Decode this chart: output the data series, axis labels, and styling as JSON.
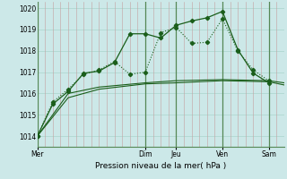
{
  "xlabel": "Pression niveau de la mer( hPa )",
  "ylim": [
    1013.5,
    1020.3
  ],
  "yticks": [
    1014,
    1015,
    1016,
    1017,
    1018,
    1019,
    1020
  ],
  "background_color": "#cce8e8",
  "grid_color_h": "#aad4cc",
  "grid_color_v": "#c4a0a0",
  "line_color": "#1a5e1a",
  "x_day_labels": [
    "Mer",
    "Dim",
    "Jeu",
    "Ven",
    "Sam"
  ],
  "x_day_positions": [
    0,
    14,
    18,
    24,
    30
  ],
  "xlim": [
    0,
    32
  ],
  "series1_x": [
    0,
    2,
    4,
    6,
    8,
    10,
    12,
    14,
    16,
    18,
    20,
    22,
    24,
    26,
    28,
    30
  ],
  "series1_y": [
    1014.0,
    1015.6,
    1016.2,
    1016.9,
    1017.1,
    1017.5,
    1016.9,
    1017.0,
    1018.85,
    1019.1,
    1018.35,
    1018.4,
    1019.5,
    1018.0,
    1017.1,
    1016.6
  ],
  "series2_x": [
    0,
    2,
    4,
    6,
    8,
    10,
    12,
    14,
    16,
    18,
    20,
    22,
    24,
    26,
    28,
    30
  ],
  "series2_y": [
    1014.0,
    1015.5,
    1016.1,
    1016.95,
    1017.05,
    1017.45,
    1018.8,
    1018.8,
    1018.6,
    1019.2,
    1019.4,
    1019.55,
    1019.85,
    1018.05,
    1016.95,
    1016.5
  ],
  "series3_x": [
    0,
    4,
    8,
    14,
    18,
    24,
    30,
    32
  ],
  "series3_y": [
    1014.0,
    1016.0,
    1016.3,
    1016.5,
    1016.6,
    1016.65,
    1016.6,
    1016.5
  ],
  "series4_x": [
    0,
    4,
    8,
    14,
    18,
    24,
    30,
    32
  ],
  "series4_y": [
    1014.0,
    1015.8,
    1016.2,
    1016.45,
    1016.5,
    1016.6,
    1016.55,
    1016.4
  ],
  "xlabel_fontsize": 6.5,
  "tick_fontsize": 5.5
}
